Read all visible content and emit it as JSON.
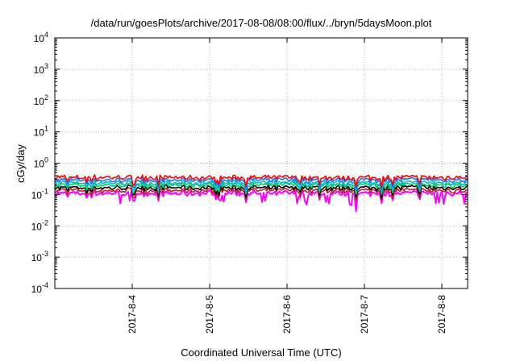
{
  "chart_data": {
    "type": "line",
    "title": "/data/run/goesPlots/archive/2017-08-08/08:00/flux/../bryn/5daysMoon.plot",
    "xlabel": "Coordinated Universal Time (UTC)",
    "ylabel": "cGy/day",
    "y_scale": "log",
    "ylim": [
      0.0001,
      10000
    ],
    "y_ticks": [
      {
        "base": "10",
        "exp": "-4"
      },
      {
        "base": "10",
        "exp": "-3"
      },
      {
        "base": "10",
        "exp": "-2"
      },
      {
        "base": "10",
        "exp": "-1"
      },
      {
        "base": "10",
        "exp": "0"
      },
      {
        "base": "10",
        "exp": "1"
      },
      {
        "base": "10",
        "exp": "2"
      },
      {
        "base": "10",
        "exp": "3"
      },
      {
        "base": "10",
        "exp": "4"
      }
    ],
    "xlim": [
      "2017-08-03T00:00",
      "2017-08-08T08:00"
    ],
    "x_ticks": [
      "2017-8-4",
      "2017-8-5",
      "2017-8-6",
      "2017-8-7",
      "2017-8-8"
    ],
    "grid": true,
    "series": [
      {
        "color": "#ff00ff",
        "level": 0.11
      },
      {
        "color": "#b22222",
        "level": 0.135
      },
      {
        "color": "#000000",
        "level": 0.165
      },
      {
        "color": "#00cc66",
        "level": 0.2
      },
      {
        "color": "#00bfbf",
        "level": 0.235
      },
      {
        "color": "#1e6fff",
        "level": 0.29
      },
      {
        "color": "#ff0000",
        "level": 0.35
      }
    ]
  }
}
